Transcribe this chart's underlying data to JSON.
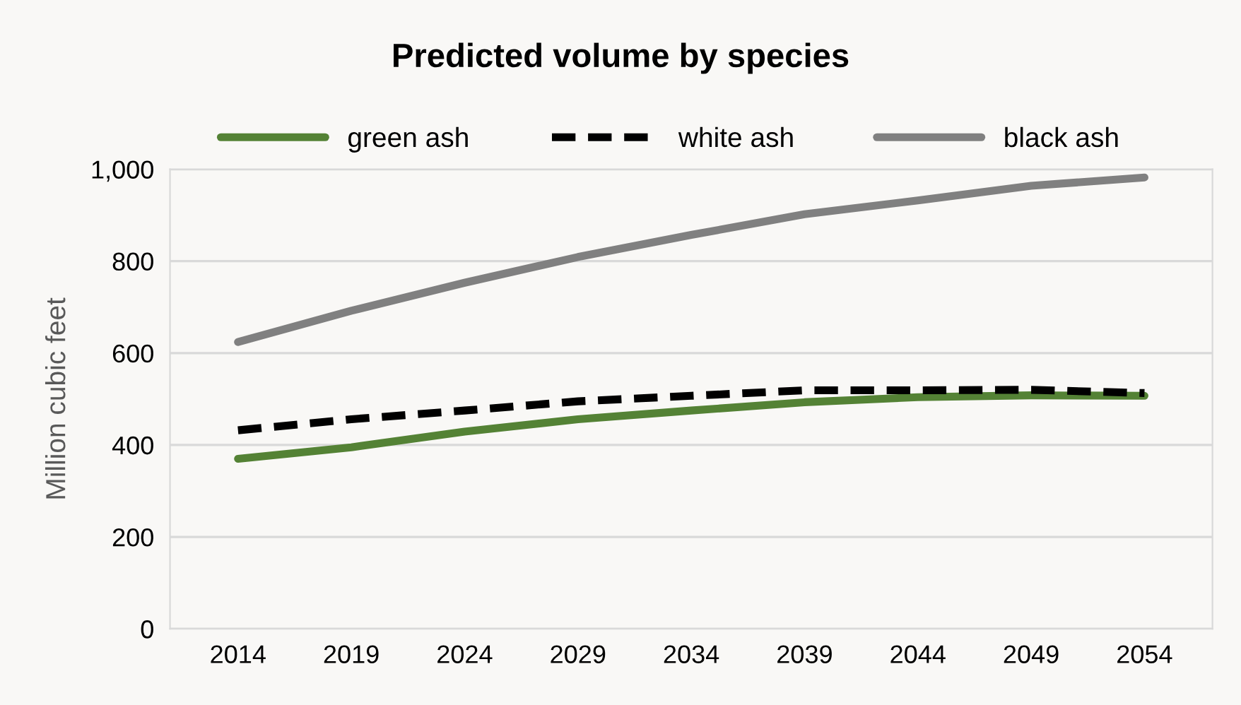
{
  "chart_data": {
    "type": "line",
    "title": "Predicted volume by species",
    "ylabel": "Million cubic feet",
    "categories": [
      "2014",
      "2019",
      "2024",
      "2029",
      "2034",
      "2039",
      "2044",
      "2049",
      "2054"
    ],
    "series": [
      {
        "name": "green ash",
        "color": "#548235",
        "line_style": "solid",
        "values": [
          370,
          395,
          429,
          456,
          475,
          493,
          504,
          508,
          507
        ]
      },
      {
        "name": "white ash",
        "color": "#000000",
        "line_style": "dashed",
        "values": [
          432,
          456,
          475,
          495,
          507,
          519,
          519,
          520,
          513
        ]
      },
      {
        "name": "black ash",
        "color": "#808080",
        "line_style": "solid",
        "values": [
          624,
          692,
          753,
          809,
          857,
          902,
          932,
          964,
          982
        ]
      }
    ],
    "ylim": [
      0,
      1000
    ],
    "yticks": [
      0,
      200,
      400,
      600,
      800,
      {
        "value": 1000,
        "label": "1,000"
      }
    ],
    "grid": "y",
    "legend": "top",
    "marker": "none"
  }
}
